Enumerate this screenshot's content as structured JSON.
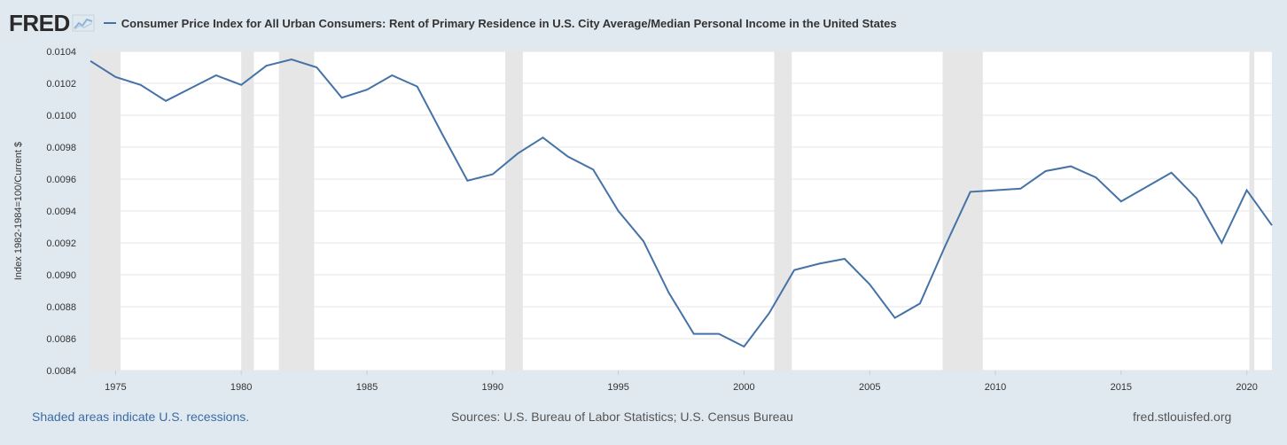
{
  "brand": {
    "logo_text": "FRED",
    "logo_icon": "chart-line-icon"
  },
  "colors": {
    "line": "#4572a7",
    "recession": "#e6e6e6",
    "grid": "#e6e6e6",
    "background": "#e1e9f0",
    "plot": "#ffffff",
    "link": "#3b6ba5"
  },
  "footer": {
    "recession_note": "Shaded areas indicate U.S. recessions.",
    "sources": "Sources: U.S. Bureau of Labor Statistics; U.S. Census Bureau",
    "site": "fred.stlouisfed.org"
  },
  "chart_data": {
    "type": "line",
    "title": "",
    "xlabel": "",
    "ylabel": "Index 1982-1984=100/Current $",
    "xlim": [
      1974,
      2021
    ],
    "ylim": [
      0.0084,
      0.0104
    ],
    "x_ticks": [
      1975,
      1980,
      1985,
      1990,
      1995,
      2000,
      2005,
      2010,
      2015,
      2020
    ],
    "x_tick_labels": [
      "1975",
      "1980",
      "1985",
      "1990",
      "1995",
      "2000",
      "2005",
      "2010",
      "2015",
      "2020"
    ],
    "y_ticks": [
      0.0084,
      0.0086,
      0.0088,
      0.009,
      0.0092,
      0.0094,
      0.0096,
      0.0098,
      0.01,
      0.0102,
      0.0104
    ],
    "y_tick_labels": [
      "0.0084",
      "0.0086",
      "0.0088",
      "0.0090",
      "0.0092",
      "0.0094",
      "0.0096",
      "0.0098",
      "0.0100",
      "0.0102",
      "0.0104"
    ],
    "grid": true,
    "legend": "top-left",
    "recessions": [
      [
        1974,
        1975.2
      ],
      [
        1980.0,
        1980.5
      ],
      [
        1981.5,
        1982.9
      ],
      [
        1990.5,
        1991.2
      ],
      [
        2001.2,
        2001.9
      ],
      [
        2007.9,
        2009.5
      ],
      [
        2020.1,
        2020.3
      ]
    ],
    "series": [
      {
        "name": "Consumer Price Index for All Urban Consumers: Rent of Primary Residence in U.S. City Average/Median Personal Income in the United States",
        "x": [
          1974,
          1975,
          1976,
          1977,
          1978,
          1979,
          1980,
          1981,
          1982,
          1983,
          1984,
          1985,
          1986,
          1987,
          1988,
          1989,
          1990,
          1991,
          1992,
          1993,
          1994,
          1995,
          1996,
          1997,
          1998,
          1999,
          2000,
          2001,
          2002,
          2003,
          2004,
          2005,
          2006,
          2007,
          2008,
          2009,
          2010,
          2011,
          2012,
          2013,
          2014,
          2015,
          2016,
          2017,
          2018,
          2019,
          2020,
          2021
        ],
        "y": [
          0.01034,
          0.01024,
          0.01019,
          0.01009,
          0.01017,
          0.01025,
          0.01019,
          0.01031,
          0.01035,
          0.0103,
          0.01011,
          0.01016,
          0.01025,
          0.01018,
          0.00988,
          0.00959,
          0.00963,
          0.00976,
          0.00986,
          0.00974,
          0.00966,
          0.0094,
          0.00921,
          0.00889,
          0.00863,
          0.00863,
          0.00855,
          0.00876,
          0.00903,
          0.00907,
          0.0091,
          0.00894,
          0.00873,
          0.00882,
          0.00918,
          0.00952,
          0.00953,
          0.00954,
          0.00965,
          0.00968,
          0.00961,
          0.00946,
          0.00955,
          0.00964,
          0.00948,
          0.0092,
          0.00953,
          0.00931
        ]
      }
    ]
  }
}
